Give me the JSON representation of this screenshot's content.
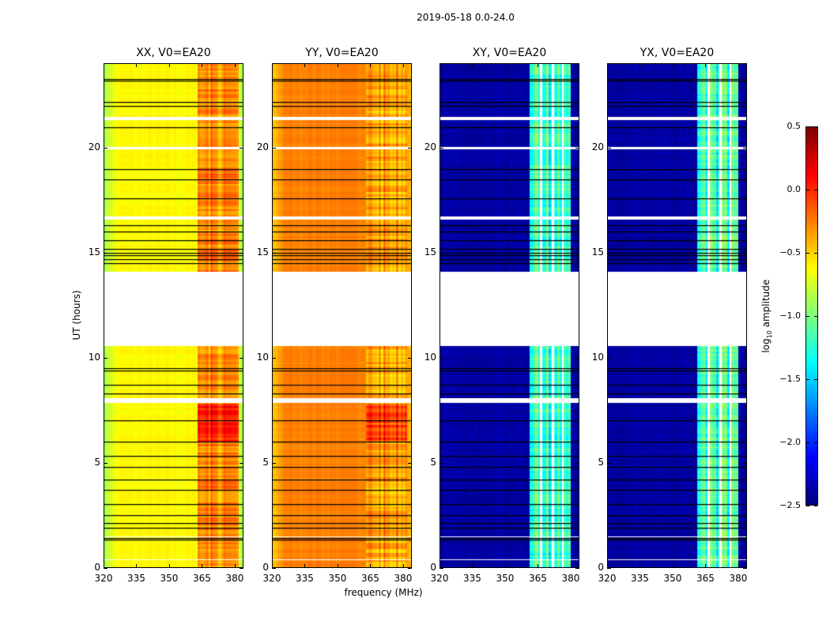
{
  "chart_data": {
    "type": "heatmap",
    "title": "2019-05-18 0.0-24.0",
    "xlabel": "frequency (MHz)",
    "ylabel": "UT (hours)",
    "xlim": [
      320,
      384
    ],
    "ylim": [
      0,
      24
    ],
    "xticks": [
      "320",
      "335",
      "350",
      "365",
      "380"
    ],
    "xtick_values": [
      320,
      335,
      350,
      365,
      380
    ],
    "yticks": [
      "0",
      "5",
      "10",
      "15",
      "20"
    ],
    "ytick_values": [
      0,
      5,
      10,
      15,
      20
    ],
    "colormap": "jet",
    "colorbar": {
      "label_main": "log",
      "label_sub": "10",
      "label_rest": " amplitude",
      "range": [
        -2.5,
        0.5
      ],
      "ticks": [
        "0.5",
        "0.0",
        "−0.5",
        "−1.0",
        "−1.5",
        "−2.0",
        "−2.5"
      ],
      "tick_values": [
        0.5,
        0.0,
        -0.5,
        -1.0,
        -1.5,
        -2.0,
        -2.5
      ],
      "placement": "right"
    },
    "blank_intervals_hours": [
      [
        10.55,
        14.1
      ],
      [
        21.35,
        21.5
      ],
      [
        19.95,
        20.05
      ],
      [
        16.6,
        16.75
      ],
      [
        7.85,
        8.1
      ],
      [
        1.45,
        1.5
      ],
      [
        0.35,
        0.4
      ]
    ],
    "flagged_times_hours": [
      23.2,
      23.3,
      22.2,
      22.0,
      21.0,
      19.0,
      18.5,
      17.6,
      16.3,
      16.0,
      15.6,
      15.2,
      15.0,
      14.9,
      14.7,
      14.5,
      9.5,
      9.4,
      8.7,
      8.3,
      7.0,
      6.0,
      5.3,
      4.8,
      4.2,
      3.7,
      3.0,
      2.5,
      2.1,
      1.9,
      1.4,
      1.3
    ],
    "panels": [
      {
        "title": "XX, V0=EA20",
        "base": -0.62,
        "edge": -0.85,
        "rfi_band_mhz": [
          363,
          382
        ],
        "rfi_level": 0.0,
        "blank_channels_mhz": []
      },
      {
        "title": "YY, V0=EA20",
        "base": -0.25,
        "edge": -0.45,
        "rfi_band_mhz": [
          363,
          382
        ],
        "rfi_level": -0.05,
        "blank_channels_mhz": []
      },
      {
        "title": "XY, V0=EA20",
        "base": -2.4,
        "edge": -2.4,
        "rfi_band_mhz": [
          361,
          380
        ],
        "rfi_level": -0.75,
        "blank_channels_mhz": [
          366.5,
          372,
          376.5
        ]
      },
      {
        "title": "YX, V0=EA20",
        "base": -2.4,
        "edge": -2.4,
        "rfi_band_mhz": [
          361,
          380
        ],
        "rfi_level": -0.75,
        "blank_channels_mhz": [
          366.5,
          372,
          376.5
        ]
      }
    ]
  }
}
